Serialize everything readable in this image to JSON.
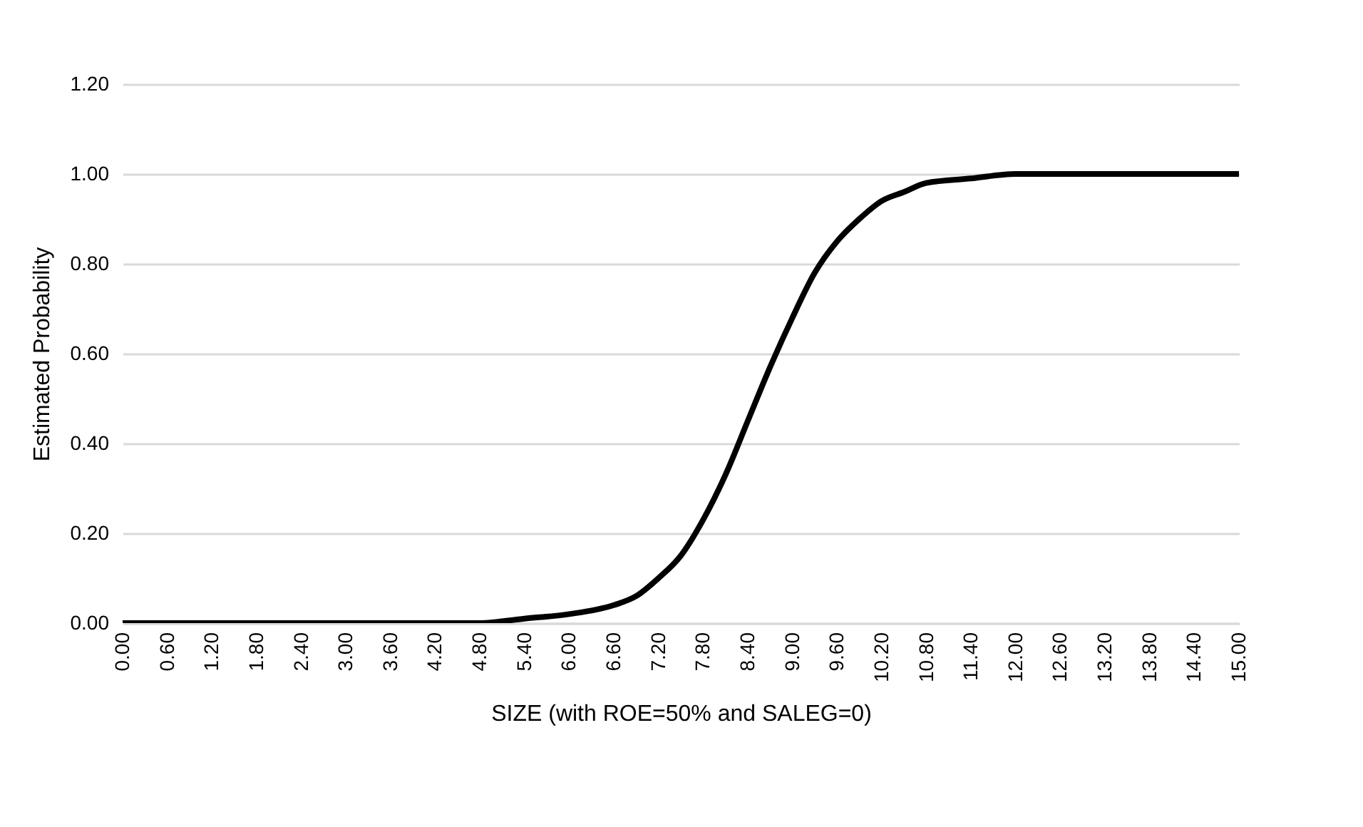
{
  "chart_data": {
    "type": "line",
    "xlabel": "SIZE (with ROE=50% and SALEG=0)",
    "ylabel": "Estimated Probability",
    "x": [
      0,
      0.6,
      1.2,
      1.8,
      2.4,
      3.0,
      3.6,
      4.2,
      4.8,
      5.4,
      6.0,
      6.6,
      6.9,
      7.2,
      7.5,
      7.8,
      8.1,
      8.4,
      8.7,
      9.0,
      9.3,
      9.6,
      9.9,
      10.2,
      10.5,
      10.8,
      11.4,
      12.0,
      12.6,
      13.2,
      13.8,
      14.4,
      15.0
    ],
    "series": [
      {
        "color": "#000000",
        "values": [
          0,
          0,
          0,
          0,
          0,
          0,
          0,
          0,
          0,
          0.01,
          0.02,
          0.04,
          0.06,
          0.1,
          0.15,
          0.23,
          0.33,
          0.45,
          0.57,
          0.68,
          0.78,
          0.85,
          0.9,
          0.94,
          0.96,
          0.98,
          0.99,
          1.0,
          1.0,
          1.0,
          1.0,
          1.0,
          1.0
        ]
      }
    ],
    "xlim": [
      0,
      15
    ],
    "xticks": [
      {
        "value": 0,
        "label": "0.00"
      },
      {
        "value": 0.6,
        "label": "0.60"
      },
      {
        "value": 1.2,
        "label": "1.20"
      },
      {
        "value": 1.8,
        "label": "1.80"
      },
      {
        "value": 2.4,
        "label": "2.40"
      },
      {
        "value": 3.0,
        "label": "3.00"
      },
      {
        "value": 3.6,
        "label": "3.60"
      },
      {
        "value": 4.2,
        "label": "4.20"
      },
      {
        "value": 4.8,
        "label": "4.80"
      },
      {
        "value": 5.4,
        "label": "5.40"
      },
      {
        "value": 6.0,
        "label": "6.00"
      },
      {
        "value": 6.6,
        "label": "6.60"
      },
      {
        "value": 7.2,
        "label": "7.20"
      },
      {
        "value": 7.8,
        "label": "7.80"
      },
      {
        "value": 8.4,
        "label": "8.40"
      },
      {
        "value": 9.0,
        "label": "9.00"
      },
      {
        "value": 9.6,
        "label": "9.60"
      },
      {
        "value": 10.2,
        "label": "10.20"
      },
      {
        "value": 10.8,
        "label": "10.80"
      },
      {
        "value": 11.4,
        "label": "11.40"
      },
      {
        "value": 12.0,
        "label": "12.00"
      },
      {
        "value": 12.6,
        "label": "12.60"
      },
      {
        "value": 13.2,
        "label": "13.20"
      },
      {
        "value": 13.8,
        "label": "13.80"
      },
      {
        "value": 14.4,
        "label": "14.40"
      },
      {
        "value": 15.0,
        "label": "15.00"
      }
    ],
    "ylim": [
      0,
      1.2
    ],
    "yticks": [
      {
        "value": 0,
        "label": "0.00"
      },
      {
        "value": 0.2,
        "label": "0.20"
      },
      {
        "value": 0.4,
        "label": "0.40"
      },
      {
        "value": 0.6,
        "label": "0.60"
      },
      {
        "value": 0.8,
        "label": "0.80"
      },
      {
        "value": 1.0,
        "label": "1.00"
      },
      {
        "value": 1.2,
        "label": "1.20"
      }
    ],
    "grid": "y"
  }
}
